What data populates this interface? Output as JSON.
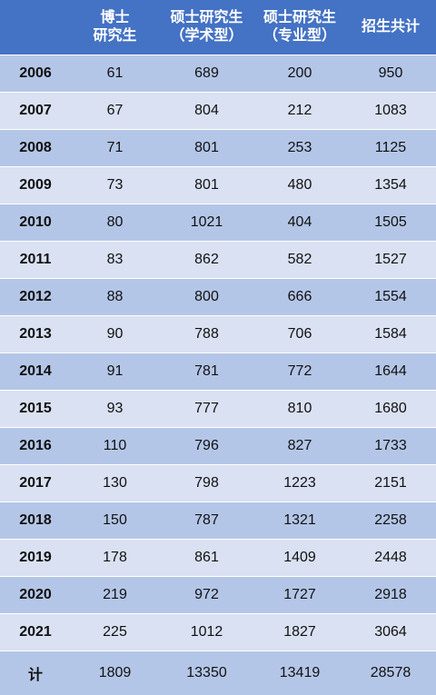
{
  "table": {
    "header": [
      [
        "博士",
        "研究生"
      ],
      [
        "硕士研究生",
        "（学术型）"
      ],
      [
        "硕士研究生",
        "（专业型）"
      ],
      [
        "招生共计"
      ]
    ],
    "rows": [
      [
        "2006",
        61,
        689,
        200,
        950
      ],
      [
        "2007",
        67,
        804,
        212,
        1083
      ],
      [
        "2008",
        71,
        801,
        253,
        1125
      ],
      [
        "2009",
        73,
        801,
        480,
        1354
      ],
      [
        "2010",
        80,
        1021,
        404,
        1505
      ],
      [
        "2011",
        83,
        862,
        582,
        1527
      ],
      [
        "2012",
        88,
        800,
        666,
        1554
      ],
      [
        "2013",
        90,
        788,
        706,
        1584
      ],
      [
        "2014",
        91,
        781,
        772,
        1644
      ],
      [
        "2015",
        93,
        777,
        810,
        1680
      ],
      [
        "2016",
        110,
        796,
        827,
        1733
      ],
      [
        "2017",
        130,
        798,
        1223,
        2151
      ],
      [
        "2018",
        150,
        787,
        1321,
        2258
      ],
      [
        "2019",
        178,
        861,
        1409,
        2448
      ],
      [
        "2020",
        219,
        972,
        1727,
        2918
      ],
      [
        "2021",
        225,
        1012,
        1827,
        3064
      ]
    ],
    "total": [
      "计",
      1809,
      13350,
      13419,
      28578
    ]
  }
}
